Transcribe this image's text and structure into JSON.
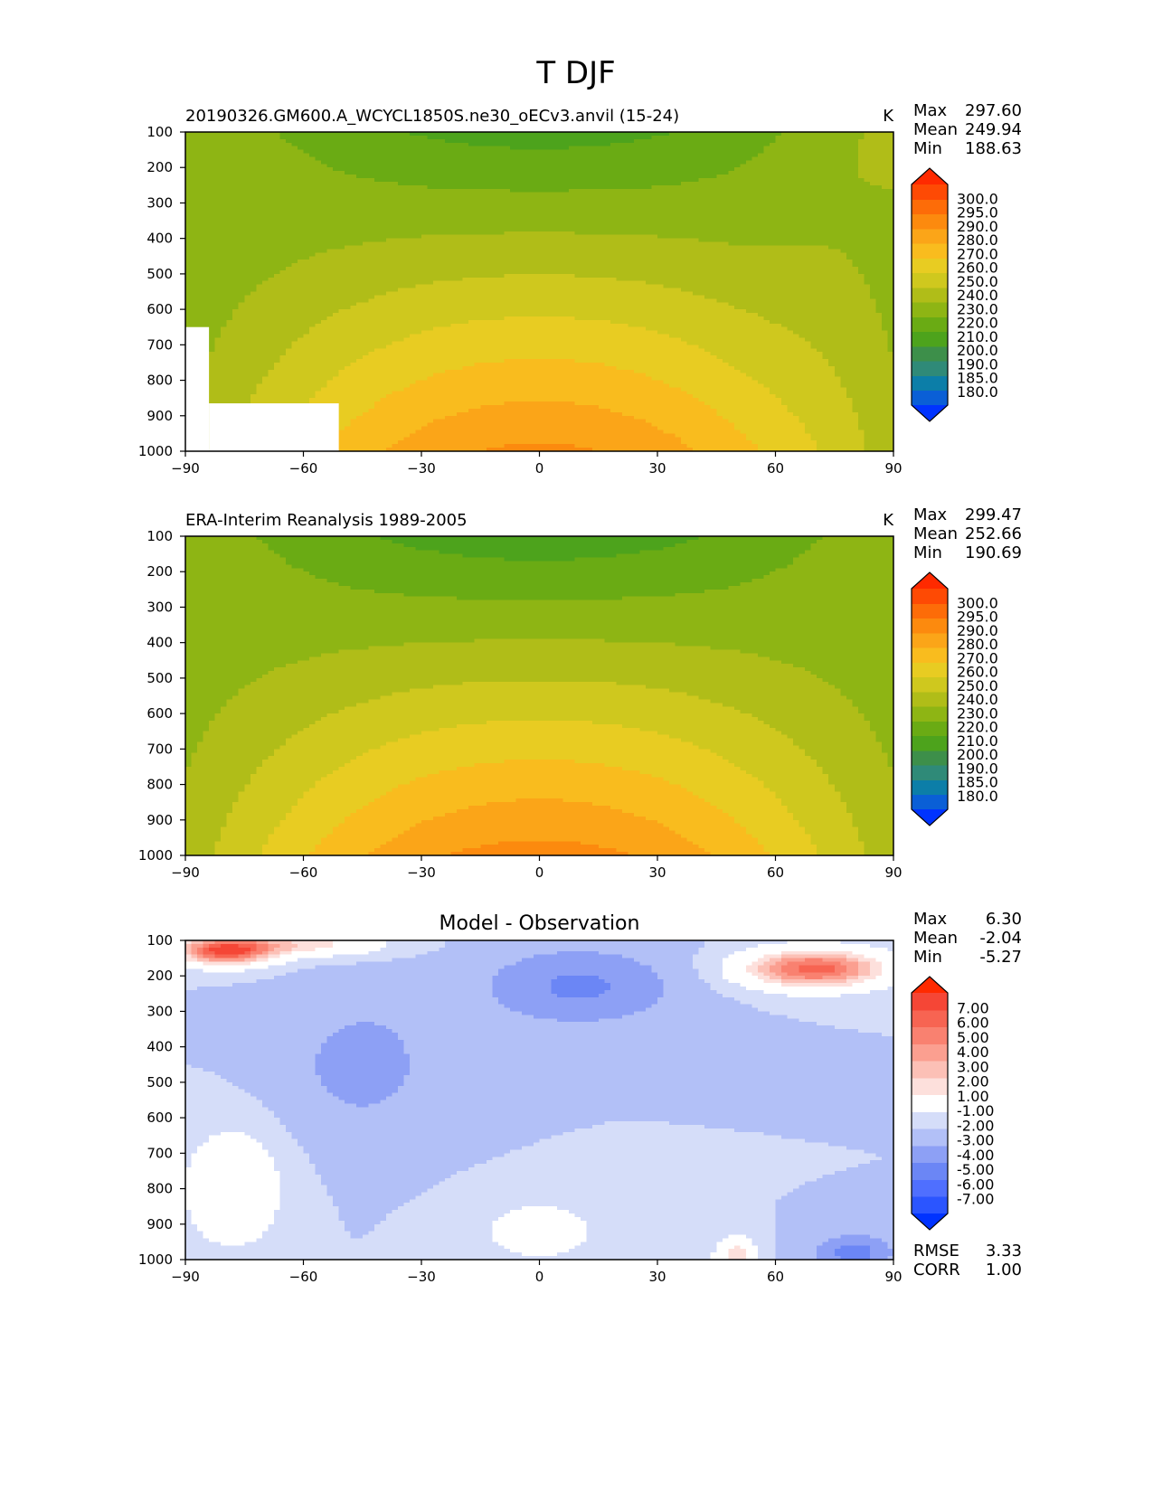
{
  "figure": {
    "title": "T DJF"
  },
  "chart_data": [
    {
      "type": "heatmap",
      "title": "",
      "left_label": "20190326.GM600.A_WCYCL1850S.ne30_oECv3.anvil (15-24)",
      "units": "K",
      "x_ticks": [
        "−90",
        "−60",
        "−30",
        "0",
        "30",
        "60",
        "90"
      ],
      "y_ticks": [
        "100",
        "200",
        "300",
        "400",
        "500",
        "600",
        "700",
        "800",
        "900",
        "1000"
      ],
      "xlim": [
        -90,
        90
      ],
      "ylim": [
        1000,
        100
      ],
      "stats": [
        {
          "label": "Max",
          "value": "297.60"
        },
        {
          "label": "Mean",
          "value": "249.94"
        },
        {
          "label": "Min",
          "value": "188.63"
        }
      ],
      "colorbar": {
        "levels": [
          "180.0",
          "185.0",
          "190.0",
          "200.0",
          "210.0",
          "220.0",
          "230.0",
          "240.0",
          "250.0",
          "260.0",
          "270.0",
          "280.0",
          "290.0",
          "295.0",
          "300.0"
        ],
        "colors": [
          "#0033ff",
          "#0a5fd6",
          "#0c7ea8",
          "#2f8a78",
          "#3d8f4a",
          "#4da31c",
          "#6aab14",
          "#8eb514",
          "#b0bd18",
          "#cfc81e",
          "#e8cc22",
          "#f9bc1e",
          "#fba518",
          "#fc8a0e",
          "#fd6c08",
          "#fe4a04",
          "#ff2a00"
        ]
      },
      "field": {
        "kind": "model",
        "max": 297.6,
        "min": 188.63,
        "masked": [
          {
            "lat_from": -90,
            "lat_to": -84,
            "p_from": 650,
            "p_to": 1000
          },
          {
            "lat_from": -84,
            "lat_to": -51,
            "p_from": 865,
            "p_to": 1000
          }
        ]
      },
      "footer": []
    },
    {
      "type": "heatmap",
      "title": "",
      "left_label": "ERA-Interim Reanalysis 1989-2005",
      "units": "K",
      "x_ticks": [
        "−90",
        "−60",
        "−30",
        "0",
        "30",
        "60",
        "90"
      ],
      "y_ticks": [
        "100",
        "200",
        "300",
        "400",
        "500",
        "600",
        "700",
        "800",
        "900",
        "1000"
      ],
      "xlim": [
        -90,
        90
      ],
      "ylim": [
        1000,
        100
      ],
      "stats": [
        {
          "label": "Max",
          "value": "299.47"
        },
        {
          "label": "Mean",
          "value": "252.66"
        },
        {
          "label": "Min",
          "value": "190.69"
        }
      ],
      "colorbar": {
        "levels": [
          "180.0",
          "185.0",
          "190.0",
          "200.0",
          "210.0",
          "220.0",
          "230.0",
          "240.0",
          "250.0",
          "260.0",
          "270.0",
          "280.0",
          "290.0",
          "295.0",
          "300.0"
        ],
        "colors": [
          "#0033ff",
          "#0a5fd6",
          "#0c7ea8",
          "#2f8a78",
          "#3d8f4a",
          "#4da31c",
          "#6aab14",
          "#8eb514",
          "#b0bd18",
          "#cfc81e",
          "#e8cc22",
          "#f9bc1e",
          "#fba518",
          "#fc8a0e",
          "#fd6c08",
          "#fe4a04",
          "#ff2a00"
        ]
      },
      "field": {
        "kind": "obs",
        "max": 299.47,
        "min": 190.69,
        "masked": []
      },
      "footer": []
    },
    {
      "type": "heatmap",
      "title": "Model - Observation",
      "left_label": "",
      "units": "",
      "x_ticks": [
        "−90",
        "−60",
        "−30",
        "0",
        "30",
        "60",
        "90"
      ],
      "y_ticks": [
        "100",
        "200",
        "300",
        "400",
        "500",
        "600",
        "700",
        "800",
        "900",
        "1000"
      ],
      "xlim": [
        -90,
        90
      ],
      "ylim": [
        1000,
        100
      ],
      "stats": [
        {
          "label": "Max",
          "value": "6.30"
        },
        {
          "label": "Mean",
          "value": "-2.04"
        },
        {
          "label": "Min",
          "value": "-5.27"
        }
      ],
      "colorbar": {
        "levels": [
          "-7.00",
          "-6.00",
          "-5.00",
          "-4.00",
          "-3.00",
          "-2.00",
          "-1.00",
          "1.00",
          "2.00",
          "3.00",
          "4.00",
          "5.00",
          "6.00",
          "7.00"
        ],
        "colors": [
          "#0033ff",
          "#2b55ff",
          "#4f6fff",
          "#6b86f5",
          "#8da0f5",
          "#b2c0f7",
          "#d5ddf9",
          "#ffffff",
          "#fde0dc",
          "#fcc0b6",
          "#fb9f90",
          "#f98170",
          "#f76452",
          "#f54636",
          "#ff2a00"
        ]
      },
      "field": {
        "kind": "diff",
        "max": 6.3,
        "min": -5.27,
        "masked": []
      },
      "footer": [
        {
          "label": "RMSE",
          "value": "3.33"
        },
        {
          "label": "CORR",
          "value": "1.00"
        }
      ]
    }
  ]
}
